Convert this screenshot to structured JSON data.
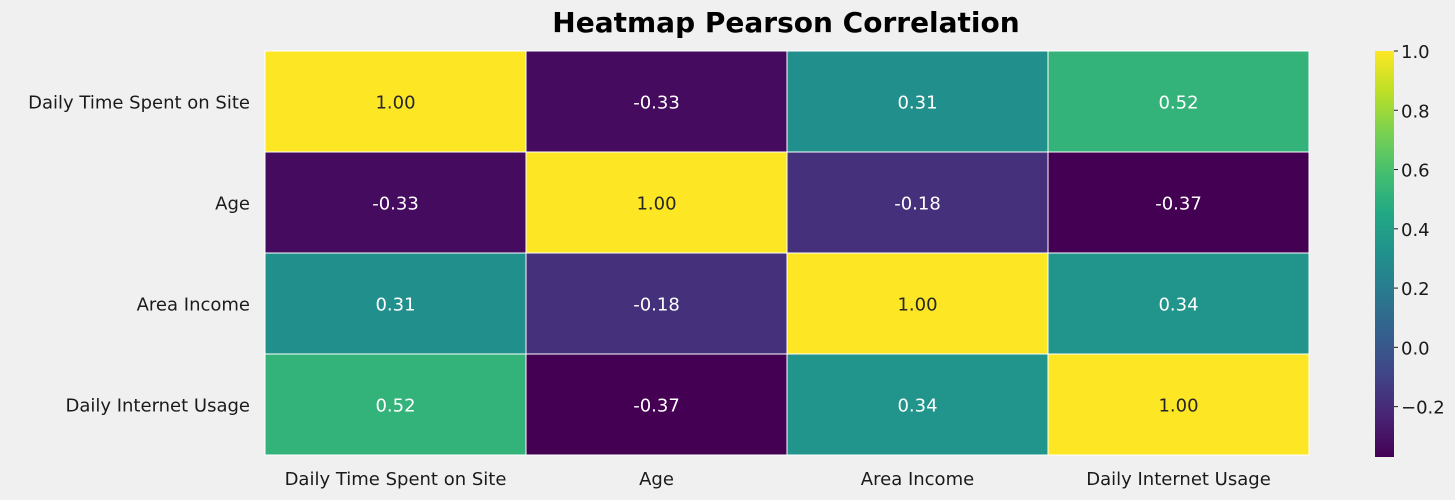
{
  "chart_data": {
    "type": "heatmap",
    "title": "Heatmap Pearson Correlation",
    "xlabel": "",
    "ylabel": "",
    "x_categories": [
      "Daily Time Spent on Site",
      "Age",
      "Area Income",
      "Daily Internet Usage"
    ],
    "y_categories": [
      "Daily Time Spent on Site",
      "Age",
      "Area Income",
      "Daily Internet Usage"
    ],
    "values": [
      [
        1.0,
        -0.33,
        0.31,
        0.52
      ],
      [
        -0.33,
        1.0,
        -0.18,
        -0.37
      ],
      [
        0.31,
        -0.18,
        1.0,
        0.34
      ],
      [
        0.52,
        -0.37,
        0.34,
        1.0
      ]
    ],
    "value_labels": [
      [
        "1.00",
        "-0.33",
        "0.31",
        "0.52"
      ],
      [
        "-0.33",
        "1.00",
        "-0.18",
        "-0.37"
      ],
      [
        "0.31",
        "-0.18",
        "1.00",
        "0.34"
      ],
      [
        "0.52",
        "-0.37",
        "0.34",
        "1.00"
      ]
    ],
    "colormap": "viridis",
    "colorbar": {
      "range": [
        -0.37,
        1.0
      ],
      "ticks": [
        1.0,
        0.8,
        0.6,
        0.4,
        0.2,
        0.0,
        -0.2
      ],
      "tick_labels": [
        "1.0",
        "0.8",
        "0.6",
        "0.4",
        "0.2",
        "0.0",
        "−0.2"
      ]
    },
    "cell_text_colors": {
      "dark": "#ffffff",
      "light": "#262626"
    },
    "grid": false
  }
}
